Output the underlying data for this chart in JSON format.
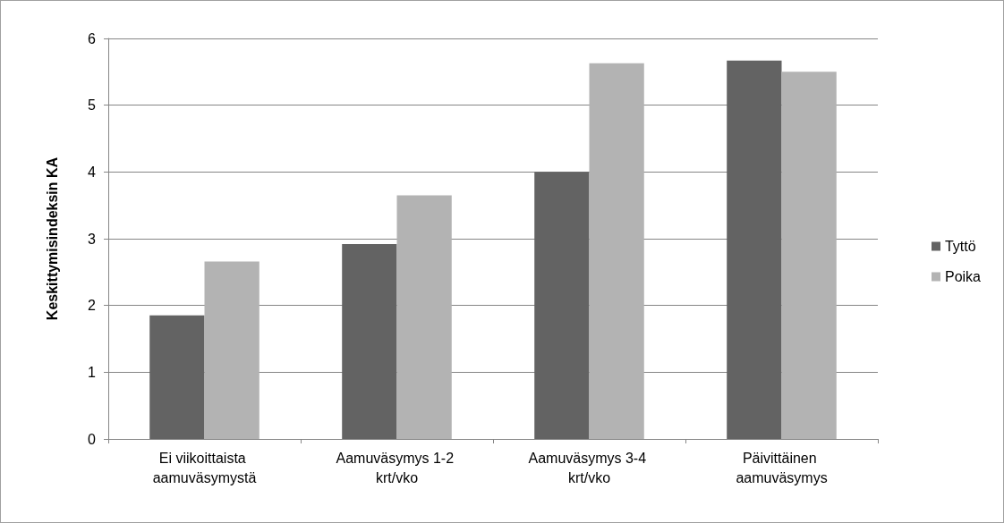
{
  "chart_data": {
    "type": "bar",
    "ylabel": "Keskittymisindeksin KA",
    "categories": [
      "Ei viikoittaista aamuväsymystä",
      "Aamuväsymys 1-2 krt/vko",
      "Aamuväsymys 3-4 krt/vko",
      "Päivittäinen aamuväsymys"
    ],
    "series": [
      {
        "name": "Tyttö",
        "color": "#636363",
        "values": [
          1.85,
          2.92,
          4.0,
          5.67
        ]
      },
      {
        "name": "Poika",
        "color": "#b3b3b3",
        "values": [
          2.66,
          3.65,
          5.63,
          5.5
        ]
      }
    ],
    "ylim": [
      0,
      6
    ],
    "yticks": [
      0,
      1,
      2,
      3,
      4,
      5,
      6
    ],
    "grid": "y",
    "legend": "right"
  }
}
